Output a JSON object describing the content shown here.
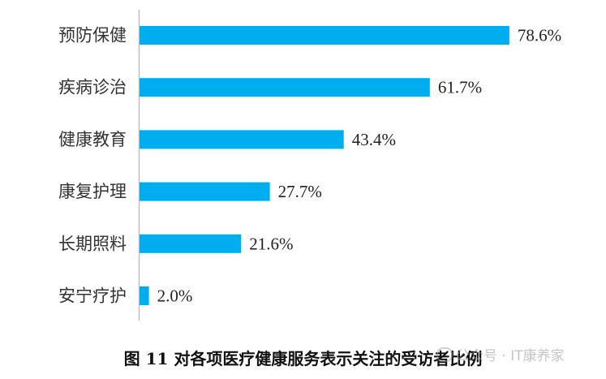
{
  "chart_data": {
    "type": "bar",
    "orientation": "horizontal",
    "categories": [
      "预防保健",
      "疾病诊治",
      "健康教育",
      "康复护理",
      "长期照料",
      "安宁疗护"
    ],
    "values": [
      78.6,
      61.7,
      43.4,
      27.7,
      21.6,
      2.0
    ],
    "value_labels": [
      "78.6%",
      "61.7%",
      "43.4%",
      "27.7%",
      "21.6%",
      "2.0%"
    ],
    "xlim": [
      0,
      100
    ],
    "bar_color": "#00AEEF",
    "grid": false,
    "legend": "none"
  },
  "caption": "图 11  对各项医疗健康服务表示关注的受访者比例",
  "watermark": {
    "text": "公众号 · IT康养家",
    "icon": "wechat-icon"
  }
}
